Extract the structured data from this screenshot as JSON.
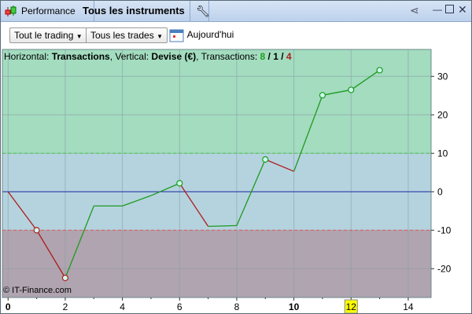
{
  "toolbar": {
    "app_label": "Performance",
    "instrument_label": "Tous les instruments",
    "icons": [
      "candlestick-icon",
      "wrench-icon",
      "share-icon",
      "minimize-icon",
      "maximize-icon",
      "close-icon"
    ]
  },
  "filters": {
    "trading": "Tout le trading",
    "trades": "Tous les trades",
    "date": "Aujourd'hui"
  },
  "info": {
    "h_prefix": "Horizontal: ",
    "h_value": "Transactions",
    "v_prefix": ", Vertical: ",
    "v_value": "Devise (€)",
    "t_prefix": ", Transactions: ",
    "wins": "8",
    "sep1": " / ",
    "even": "1",
    "sep2": " / ",
    "losses": "4"
  },
  "watermark": "© IT-Finance.com",
  "colors": {
    "win": "#1e9a1e",
    "loss": "#b01c1c",
    "zero": "#2233aa",
    "highlight": "#ffff00"
  },
  "chart_data": {
    "type": "line",
    "x": [
      0,
      1,
      2,
      3,
      4,
      5,
      6,
      7,
      8,
      9,
      10,
      11,
      12,
      13
    ],
    "y": [
      0,
      -10,
      -22.4,
      -3.7,
      -3.7,
      -1,
      2.2,
      -9,
      -8.8,
      8.4,
      5.3,
      25.1,
      26.5,
      31.6
    ],
    "markers": [
      1,
      2,
      6,
      9,
      11,
      12,
      13
    ],
    "xlim": [
      -0.2,
      14.8
    ],
    "ylim": [
      -27.5,
      37
    ],
    "xticks": [
      "0",
      "2",
      "4",
      "6",
      "8",
      "10",
      "12",
      "14"
    ],
    "yticks": [
      "-20",
      "-10",
      "0",
      "10",
      "20",
      "30"
    ],
    "highlighted_x": "12",
    "bands": {
      "upper": 10,
      "lower": -10
    }
  }
}
